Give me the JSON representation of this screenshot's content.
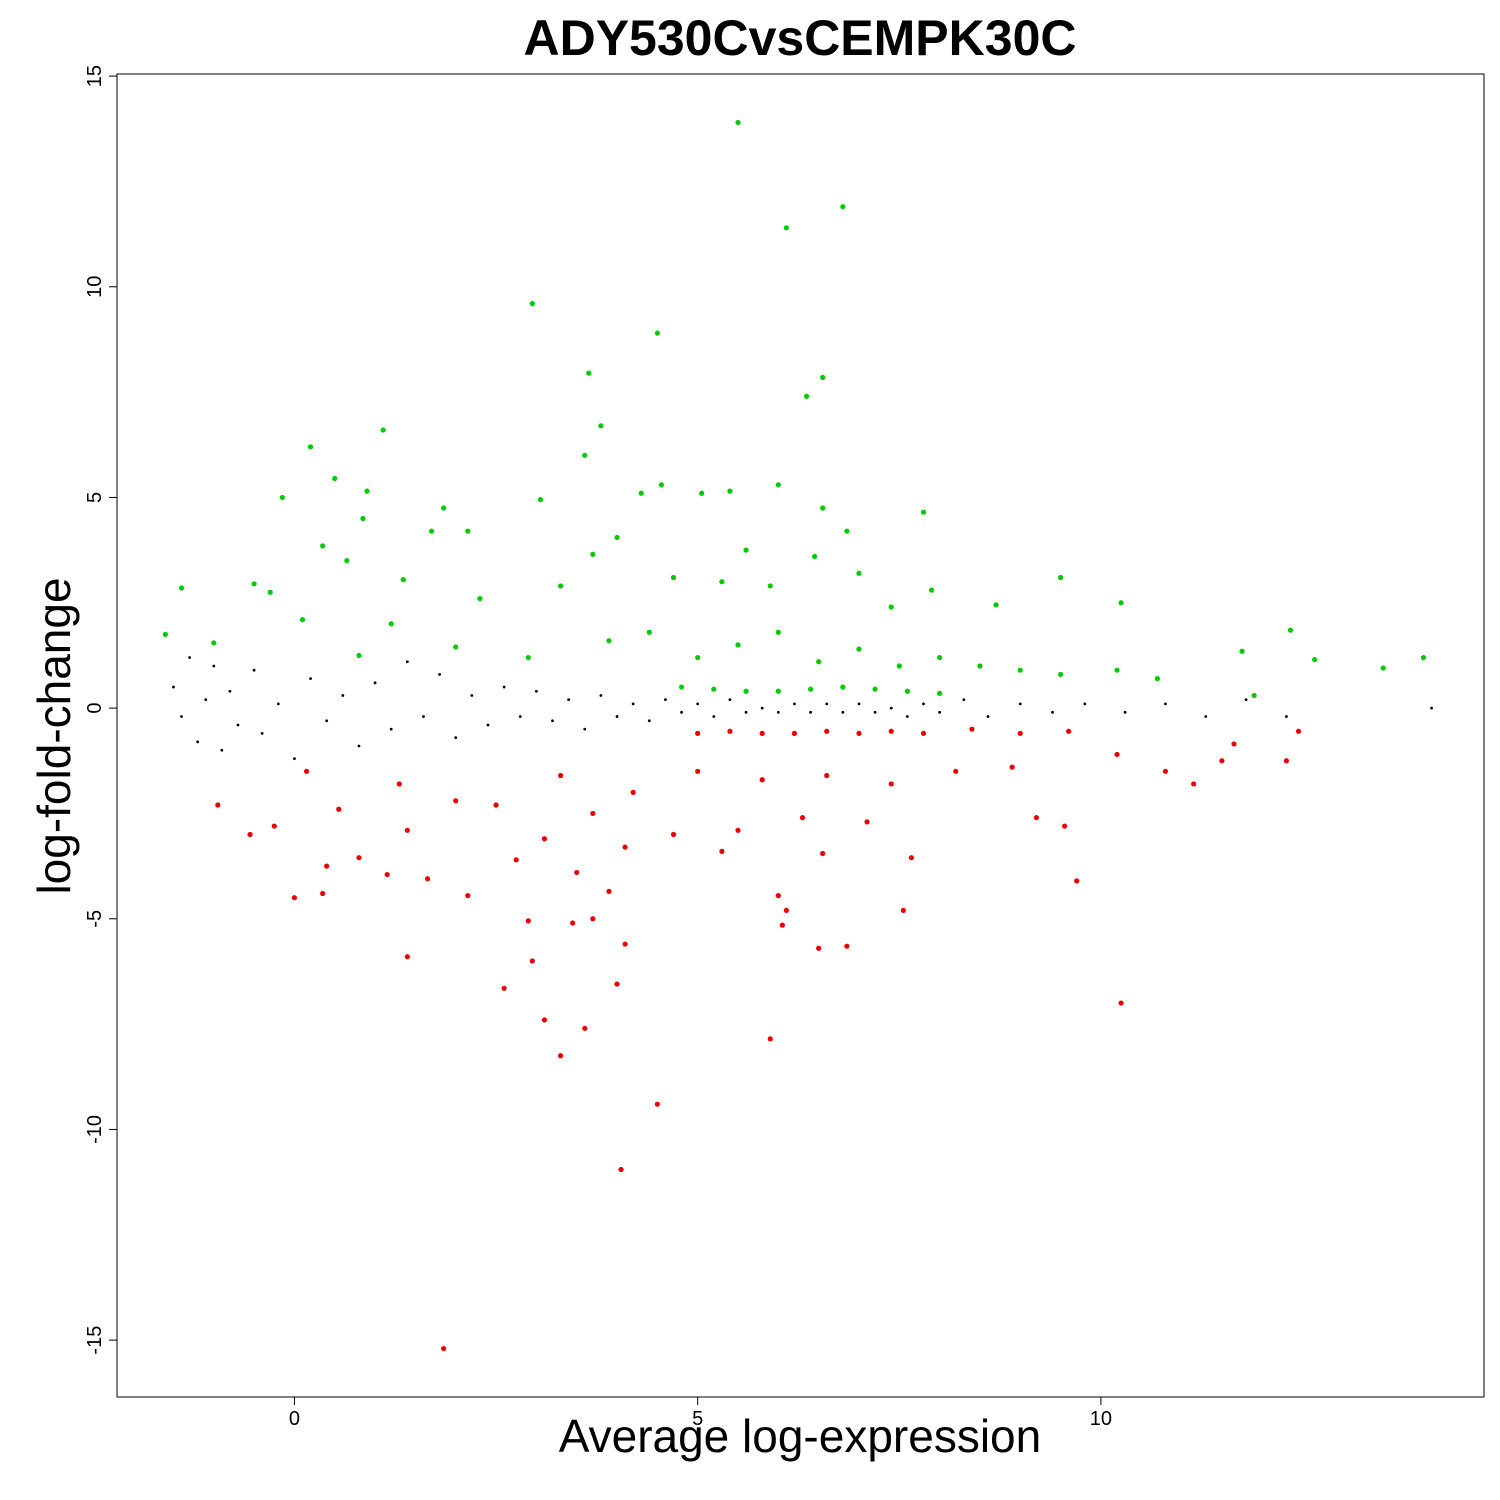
{
  "chart_data": {
    "type": "scatter",
    "title": "ADY530CvsCEMPK30C",
    "xlabel": "Average log-expression",
    "ylabel": "log-fold-change",
    "xlim": [
      -2.2,
      14.75
    ],
    "ylim": [
      -16.35,
      15.05
    ],
    "x_ticks": [
      0,
      5,
      10
    ],
    "y_ticks": [
      15,
      10,
      5,
      0,
      -5,
      -10,
      -15
    ],
    "x_tick_labels": [
      "0",
      "5",
      "10"
    ],
    "y_tick_labels": [
      "15",
      "10",
      "5",
      "0",
      "-5",
      "-10",
      "-15"
    ],
    "grid": false,
    "legend": "none",
    "series": [
      {
        "color": "#000000",
        "points": [
          [
            -1.5,
            0.5
          ],
          [
            -1.4,
            -0.2
          ],
          [
            -1.3,
            1.2
          ],
          [
            -1.2,
            -0.8
          ],
          [
            -1.1,
            0.2
          ],
          [
            -1.0,
            1.0
          ],
          [
            -0.9,
            -1.0
          ],
          [
            -0.8,
            0.4
          ],
          [
            -0.7,
            -0.4
          ],
          [
            -0.5,
            0.9
          ],
          [
            -0.4,
            -0.6
          ],
          [
            -0.2,
            0.1
          ],
          [
            0.0,
            -1.2
          ],
          [
            0.2,
            0.7
          ],
          [
            0.4,
            -0.3
          ],
          [
            0.6,
            0.3
          ],
          [
            0.8,
            -0.9
          ],
          [
            1.0,
            0.6
          ],
          [
            1.2,
            -0.5
          ],
          [
            1.4,
            1.1
          ],
          [
            1.6,
            -0.2
          ],
          [
            1.8,
            0.8
          ],
          [
            2.0,
            -0.7
          ],
          [
            2.2,
            0.3
          ],
          [
            2.4,
            -0.4
          ],
          [
            2.6,
            0.5
          ],
          [
            2.8,
            -0.2
          ],
          [
            3.0,
            0.4
          ],
          [
            3.2,
            -0.3
          ],
          [
            3.4,
            0.2
          ],
          [
            3.6,
            -0.5
          ],
          [
            3.8,
            0.3
          ],
          [
            4.0,
            -0.2
          ],
          [
            4.2,
            0.1
          ],
          [
            4.4,
            -0.3
          ],
          [
            4.6,
            0.2
          ],
          [
            4.8,
            -0.1
          ],
          [
            5.0,
            0.1
          ],
          [
            5.2,
            -0.2
          ],
          [
            5.4,
            0.2
          ],
          [
            5.6,
            -0.1
          ],
          [
            5.8,
            0.0
          ],
          [
            6.0,
            -0.1
          ],
          [
            6.2,
            0.1
          ],
          [
            6.4,
            -0.1
          ],
          [
            6.6,
            0.1
          ],
          [
            6.8,
            -0.1
          ],
          [
            7.0,
            0.1
          ],
          [
            7.2,
            -0.1
          ],
          [
            7.4,
            0.0
          ],
          [
            7.6,
            -0.2
          ],
          [
            7.8,
            0.1
          ],
          [
            8.0,
            -0.1
          ],
          [
            8.3,
            0.2
          ],
          [
            8.6,
            -0.2
          ],
          [
            9.0,
            0.1
          ],
          [
            9.4,
            -0.1
          ],
          [
            9.8,
            0.1
          ],
          [
            10.3,
            -0.1
          ],
          [
            10.8,
            0.1
          ],
          [
            11.3,
            -0.2
          ],
          [
            11.8,
            0.2
          ],
          [
            12.3,
            -0.2
          ],
          [
            14.1,
            0.0
          ]
        ]
      },
      {
        "color": "#00cc00",
        "points": [
          [
            5.5,
            13.9
          ],
          [
            6.8,
            11.9
          ],
          [
            6.1,
            11.4
          ],
          [
            2.95,
            9.6
          ],
          [
            4.5,
            8.9
          ],
          [
            3.65,
            7.95
          ],
          [
            6.55,
            7.85
          ],
          [
            6.35,
            7.4
          ],
          [
            3.8,
            6.7
          ],
          [
            1.1,
            6.6
          ],
          [
            0.2,
            6.2
          ],
          [
            3.6,
            6.0
          ],
          [
            0.5,
            5.45
          ],
          [
            6.0,
            5.3
          ],
          [
            4.55,
            5.3
          ],
          [
            -0.15,
            5.0
          ],
          [
            0.9,
            5.15
          ],
          [
            4.3,
            5.1
          ],
          [
            5.05,
            5.1
          ],
          [
            5.4,
            5.15
          ],
          [
            3.05,
            4.95
          ],
          [
            1.85,
            4.75
          ],
          [
            6.55,
            4.75
          ],
          [
            7.8,
            4.65
          ],
          [
            0.85,
            4.5
          ],
          [
            4.0,
            4.05
          ],
          [
            6.85,
            4.2
          ],
          [
            1.7,
            4.2
          ],
          [
            2.15,
            4.2
          ],
          [
            0.35,
            3.85
          ],
          [
            3.7,
            3.65
          ],
          [
            0.65,
            3.5
          ],
          [
            6.45,
            3.6
          ],
          [
            5.6,
            3.75
          ],
          [
            9.5,
            3.1
          ],
          [
            1.35,
            3.05
          ],
          [
            7.0,
            3.2
          ],
          [
            -1.4,
            2.85
          ],
          [
            -0.5,
            2.95
          ],
          [
            -0.3,
            2.75
          ],
          [
            0.1,
            2.1
          ],
          [
            1.2,
            2.0
          ],
          [
            2.3,
            2.6
          ],
          [
            3.3,
            2.9
          ],
          [
            4.7,
            3.1
          ],
          [
            5.3,
            3.0
          ],
          [
            5.9,
            2.9
          ],
          [
            7.4,
            2.4
          ],
          [
            7.9,
            2.8
          ],
          [
            8.7,
            2.45
          ],
          [
            10.25,
            2.5
          ],
          [
            12.35,
            1.85
          ],
          [
            11.75,
            1.35
          ],
          [
            -1.6,
            1.75
          ],
          [
            -1.0,
            1.55
          ],
          [
            0.8,
            1.25
          ],
          [
            2.0,
            1.45
          ],
          [
            2.9,
            1.2
          ],
          [
            3.9,
            1.6
          ],
          [
            4.4,
            1.8
          ],
          [
            5.0,
            1.2
          ],
          [
            5.5,
            1.5
          ],
          [
            6.0,
            1.8
          ],
          [
            6.5,
            1.1
          ],
          [
            7.0,
            1.4
          ],
          [
            7.5,
            1.0
          ],
          [
            8.0,
            1.2
          ],
          [
            8.5,
            1.0
          ],
          [
            9.0,
            0.9
          ],
          [
            9.5,
            0.8
          ],
          [
            10.2,
            0.9
          ],
          [
            10.7,
            0.7
          ],
          [
            12.65,
            1.15
          ],
          [
            13.5,
            0.95
          ],
          [
            14.0,
            1.2
          ],
          [
            11.9,
            0.3
          ],
          [
            4.8,
            0.5
          ],
          [
            5.2,
            0.45
          ],
          [
            5.6,
            0.4
          ],
          [
            6.0,
            0.4
          ],
          [
            6.4,
            0.45
          ],
          [
            6.8,
            0.5
          ],
          [
            7.2,
            0.45
          ],
          [
            7.6,
            0.4
          ],
          [
            8.0,
            0.35
          ]
        ]
      },
      {
        "color": "#ee0000",
        "points": [
          [
            1.85,
            -15.2
          ],
          [
            4.05,
            -10.95
          ],
          [
            4.5,
            -9.4
          ],
          [
            3.3,
            -8.25
          ],
          [
            5.9,
            -7.85
          ],
          [
            3.6,
            -7.6
          ],
          [
            3.1,
            -7.4
          ],
          [
            10.25,
            -7.0
          ],
          [
            2.6,
            -6.65
          ],
          [
            4.0,
            -6.55
          ],
          [
            1.4,
            -5.9
          ],
          [
            2.95,
            -6.0
          ],
          [
            4.1,
            -5.6
          ],
          [
            6.5,
            -5.7
          ],
          [
            6.85,
            -5.65
          ],
          [
            6.05,
            -5.15
          ],
          [
            3.45,
            -5.1
          ],
          [
            2.9,
            -5.05
          ],
          [
            3.7,
            -5.0
          ],
          [
            6.1,
            -4.8
          ],
          [
            7.55,
            -4.8
          ],
          [
            0.0,
            -4.5
          ],
          [
            0.35,
            -4.4
          ],
          [
            2.15,
            -4.45
          ],
          [
            1.65,
            -4.05
          ],
          [
            3.9,
            -4.35
          ],
          [
            6.0,
            -4.45
          ],
          [
            9.7,
            -4.1
          ],
          [
            0.4,
            -3.75
          ],
          [
            1.15,
            -3.95
          ],
          [
            2.75,
            -3.6
          ],
          [
            3.5,
            -3.9
          ],
          [
            0.8,
            -3.55
          ],
          [
            5.3,
            -3.4
          ],
          [
            6.55,
            -3.45
          ],
          [
            7.65,
            -3.55
          ],
          [
            4.1,
            -3.3
          ],
          [
            -0.55,
            -3.0
          ],
          [
            -0.25,
            -2.8
          ],
          [
            0.55,
            -2.4
          ],
          [
            1.4,
            -2.9
          ],
          [
            2.0,
            -2.2
          ],
          [
            3.1,
            -3.1
          ],
          [
            3.7,
            -2.5
          ],
          [
            4.7,
            -3.0
          ],
          [
            5.5,
            -2.9
          ],
          [
            6.3,
            -2.6
          ],
          [
            7.1,
            -2.7
          ],
          [
            9.2,
            -2.6
          ],
          [
            9.55,
            -2.8
          ],
          [
            -0.95,
            -2.3
          ],
          [
            0.15,
            -1.5
          ],
          [
            1.3,
            -1.8
          ],
          [
            2.5,
            -2.3
          ],
          [
            3.3,
            -1.6
          ],
          [
            4.2,
            -2.0
          ],
          [
            5.0,
            -1.5
          ],
          [
            5.8,
            -1.7
          ],
          [
            6.6,
            -1.6
          ],
          [
            7.4,
            -1.8
          ],
          [
            8.2,
            -1.5
          ],
          [
            8.9,
            -1.4
          ],
          [
            10.2,
            -1.1
          ],
          [
            10.8,
            -1.5
          ],
          [
            11.5,
            -1.25
          ],
          [
            11.15,
            -1.8
          ],
          [
            12.3,
            -1.25
          ],
          [
            12.45,
            -0.55
          ],
          [
            11.65,
            -0.85
          ],
          [
            5.0,
            -0.6
          ],
          [
            5.4,
            -0.55
          ],
          [
            5.8,
            -0.6
          ],
          [
            6.2,
            -0.6
          ],
          [
            6.6,
            -0.55
          ],
          [
            7.0,
            -0.6
          ],
          [
            7.4,
            -0.55
          ],
          [
            7.8,
            -0.6
          ],
          [
            8.4,
            -0.5
          ],
          [
            9.0,
            -0.6
          ],
          [
            9.6,
            -0.55
          ]
        ]
      }
    ]
  }
}
